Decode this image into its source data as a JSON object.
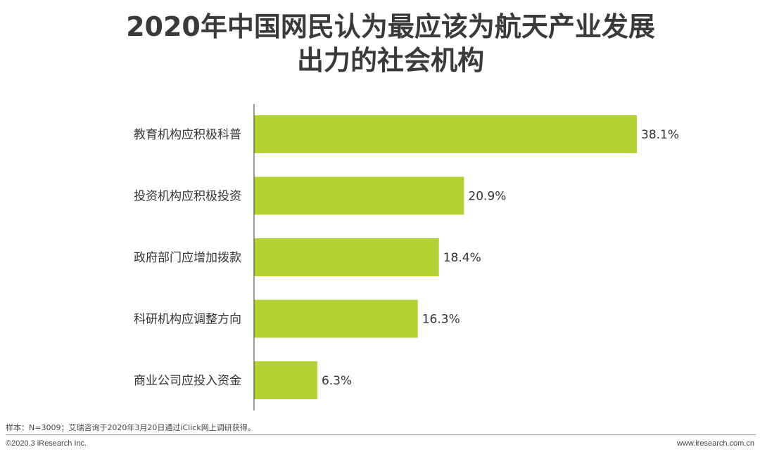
{
  "title": {
    "line1": "2020年中国网民认为最应该为航天产业发展",
    "line2": "出力的社会机构"
  },
  "chart_data": {
    "type": "bar",
    "orientation": "horizontal",
    "categories": [
      "教育机构应积极科普",
      "投资机构应积极投资",
      "政府部门应增加拨款",
      "科研机构应调整方向",
      "商业公司应投入资金"
    ],
    "values": [
      38.1,
      20.9,
      18.4,
      16.3,
      6.3
    ],
    "value_labels": [
      "38.1%",
      "20.9%",
      "18.4%",
      "16.3%",
      "6.3%"
    ],
    "unit": "%",
    "xlim": [
      0,
      38.1
    ],
    "bar_color": "#b3d334",
    "grid": false,
    "legend": "none"
  },
  "footer": {
    "note": "样本：N=3009；艾瑞咨询于2020年3月20日通过iClick网上调研获得。",
    "copyright": "©2020.3 iResearch Inc.",
    "website": "www.iresearch.com.cn"
  }
}
